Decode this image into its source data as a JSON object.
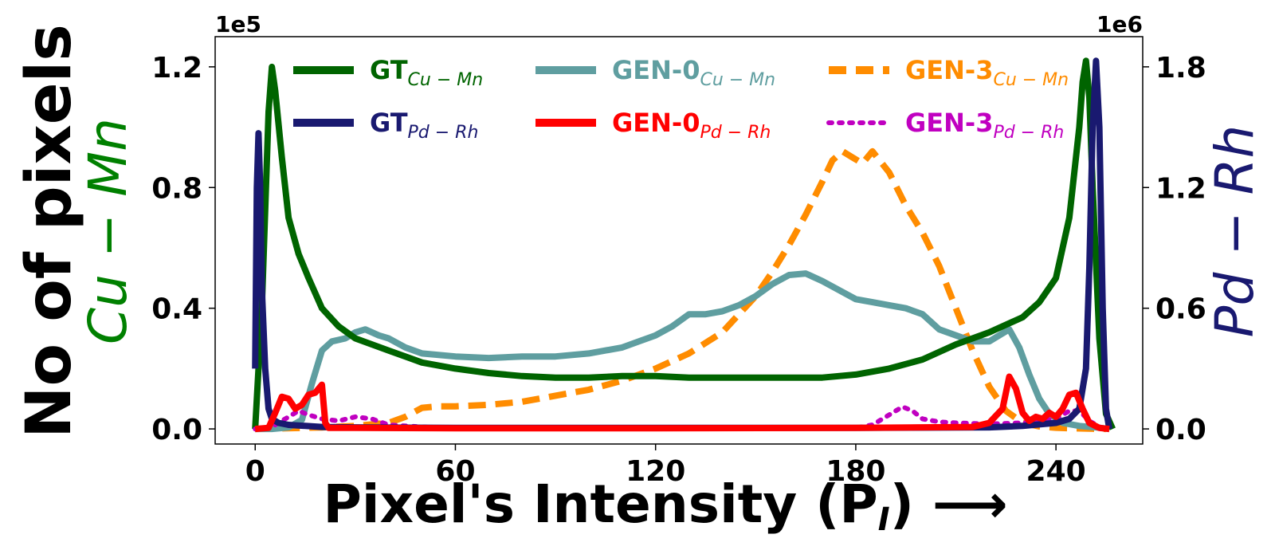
{
  "chart_data": {
    "type": "line",
    "title": "",
    "xlabel": "Pixel's Intensity (P",
    "xlabel_sub": "I",
    "xlabel_tail": ") ⟶",
    "ylabel_main": "No of pixels",
    "ylabel_left": "Cu − Mn",
    "ylabel_right": "Pd − Rh",
    "left_multiplier": "1e5",
    "right_multiplier": "1e6",
    "xlim": [
      -12,
      266
    ],
    "ylim_left": [
      -0.05,
      1.3
    ],
    "ylim_right": [
      -0.075,
      1.95
    ],
    "x_ticks": [
      0,
      60,
      120,
      180,
      240
    ],
    "left_ticks": [
      0.0,
      0.4,
      0.8,
      1.2
    ],
    "left_tick_labels": [
      "0.0",
      "0.4",
      "0.8",
      "1.2"
    ],
    "right_ticks": [
      0.0,
      0.6,
      1.2,
      1.8
    ],
    "right_tick_labels": [
      "0.0",
      "0.6",
      "1.2",
      "1.8"
    ],
    "legend_position": "top",
    "series": [
      {
        "name": "GT",
        "name_sub": "Cu − Mn",
        "axis": "left",
        "color": "#006400",
        "dash": "solid",
        "x": [
          0,
          2,
          4,
          5,
          6,
          8,
          10,
          13,
          16,
          20,
          25,
          30,
          35,
          40,
          50,
          60,
          70,
          80,
          90,
          100,
          110,
          120,
          130,
          140,
          150,
          160,
          170,
          180,
          190,
          200,
          210,
          220,
          230,
          235,
          240,
          244,
          247,
          248,
          249,
          250,
          251,
          253,
          255,
          257
        ],
        "y": [
          0.0,
          0.4,
          1.05,
          1.2,
          1.12,
          0.9,
          0.7,
          0.58,
          0.5,
          0.4,
          0.34,
          0.3,
          0.28,
          0.26,
          0.22,
          0.2,
          0.185,
          0.175,
          0.17,
          0.17,
          0.175,
          0.175,
          0.17,
          0.17,
          0.17,
          0.17,
          0.17,
          0.18,
          0.2,
          0.23,
          0.28,
          0.32,
          0.37,
          0.42,
          0.5,
          0.7,
          1.0,
          1.15,
          1.22,
          1.1,
          0.8,
          0.3,
          0.05,
          0.0
        ]
      },
      {
        "name": "GT",
        "name_sub": "Pd − Rh",
        "axis": "right",
        "color": "#191970",
        "dash": "solid",
        "x": [
          0,
          0.5,
          1,
          1.5,
          2,
          3,
          4,
          5,
          7,
          10,
          15,
          20,
          30,
          60,
          120,
          180,
          220,
          230,
          240,
          244,
          247,
          249,
          250,
          251,
          252,
          253,
          254,
          255,
          256
        ],
        "y": [
          0.3,
          1.2,
          1.47,
          1.2,
          0.7,
          0.3,
          0.1,
          0.05,
          0.03,
          0.02,
          0.015,
          0.01,
          0.008,
          0.005,
          0.005,
          0.005,
          0.008,
          0.015,
          0.03,
          0.05,
          0.1,
          0.3,
          0.8,
          1.5,
          1.83,
          1.5,
          0.6,
          0.1,
          0.0
        ]
      },
      {
        "name": "GEN-0",
        "name_sub": "Cu − Mn",
        "axis": "left",
        "color": "#5f9ea0",
        "dash": "solid",
        "x": [
          0,
          5,
          10,
          14,
          17,
          20,
          23,
          27,
          30,
          33,
          37,
          40,
          45,
          50,
          60,
          70,
          80,
          90,
          100,
          110,
          115,
          120,
          125,
          130,
          135,
          140,
          145,
          150,
          155,
          160,
          165,
          170,
          175,
          180,
          185,
          190,
          195,
          200,
          205,
          210,
          215,
          220,
          223,
          226,
          229,
          232,
          235,
          238,
          242,
          247,
          252,
          256
        ],
        "y": [
          0.0,
          0.0,
          0.005,
          0.03,
          0.15,
          0.26,
          0.29,
          0.3,
          0.32,
          0.33,
          0.31,
          0.3,
          0.27,
          0.25,
          0.24,
          0.235,
          0.24,
          0.24,
          0.25,
          0.27,
          0.29,
          0.31,
          0.34,
          0.38,
          0.38,
          0.39,
          0.41,
          0.44,
          0.48,
          0.51,
          0.515,
          0.49,
          0.46,
          0.43,
          0.42,
          0.41,
          0.4,
          0.38,
          0.33,
          0.31,
          0.29,
          0.29,
          0.31,
          0.33,
          0.27,
          0.18,
          0.1,
          0.05,
          0.02,
          0.01,
          0.005,
          0.0
        ]
      },
      {
        "name": "GEN-0",
        "name_sub": "Pd − Rh",
        "axis": "right",
        "color": "#ff0000",
        "dash": "solid",
        "x": [
          0,
          4,
          6,
          8,
          10,
          12,
          14,
          16,
          18,
          20,
          21,
          22,
          25,
          30,
          60,
          120,
          180,
          215,
          220,
          224,
          226,
          228,
          230,
          232,
          234,
          236,
          238,
          240,
          242,
          244,
          246,
          248,
          250,
          253,
          256
        ],
        "y": [
          0.0,
          0.005,
          0.08,
          0.16,
          0.15,
          0.1,
          0.12,
          0.17,
          0.18,
          0.22,
          0.03,
          0.005,
          0.005,
          0.005,
          0.003,
          0.003,
          0.005,
          0.01,
          0.03,
          0.1,
          0.26,
          0.2,
          0.08,
          0.04,
          0.06,
          0.05,
          0.08,
          0.06,
          0.1,
          0.17,
          0.18,
          0.1,
          0.03,
          0.005,
          0.0
        ]
      },
      {
        "name": "GEN-3",
        "name_sub": "Cu − Mn",
        "axis": "left",
        "color": "#ff8c00",
        "dash": "dashed",
        "x": [
          0,
          20,
          30,
          40,
          45,
          50,
          55,
          60,
          70,
          80,
          90,
          100,
          110,
          120,
          130,
          140,
          150,
          155,
          160,
          165,
          170,
          173,
          176,
          179,
          182,
          185,
          190,
          195,
          200,
          205,
          210,
          215,
          220,
          225,
          230,
          235,
          240,
          245,
          250,
          255
        ],
        "y": [
          0.0,
          0.005,
          0.01,
          0.02,
          0.04,
          0.07,
          0.075,
          0.075,
          0.08,
          0.09,
          0.11,
          0.13,
          0.16,
          0.2,
          0.25,
          0.32,
          0.44,
          0.52,
          0.61,
          0.71,
          0.82,
          0.89,
          0.92,
          0.9,
          0.88,
          0.92,
          0.85,
          0.74,
          0.65,
          0.54,
          0.4,
          0.26,
          0.14,
          0.06,
          0.02,
          0.008,
          0.004,
          0.002,
          0.001,
          0.0
        ]
      },
      {
        "name": "GEN-3",
        "name_sub": "Pd − Rh",
        "axis": "right",
        "color": "#c000c0",
        "dash": "dotted",
        "x": [
          0,
          5,
          10,
          13,
          16,
          20,
          25,
          30,
          35,
          40,
          50,
          60,
          120,
          180,
          185,
          188,
          191,
          194,
          197,
          200,
          205,
          210,
          220,
          230,
          240,
          244,
          247,
          250,
          253,
          256
        ],
        "y": [
          0.0,
          0.01,
          0.06,
          0.09,
          0.07,
          0.05,
          0.04,
          0.06,
          0.05,
          0.02,
          0.01,
          0.005,
          0.004,
          0.005,
          0.02,
          0.05,
          0.08,
          0.11,
          0.09,
          0.05,
          0.035,
          0.03,
          0.025,
          0.03,
          0.05,
          0.09,
          0.09,
          0.04,
          0.01,
          0.0
        ]
      }
    ]
  }
}
